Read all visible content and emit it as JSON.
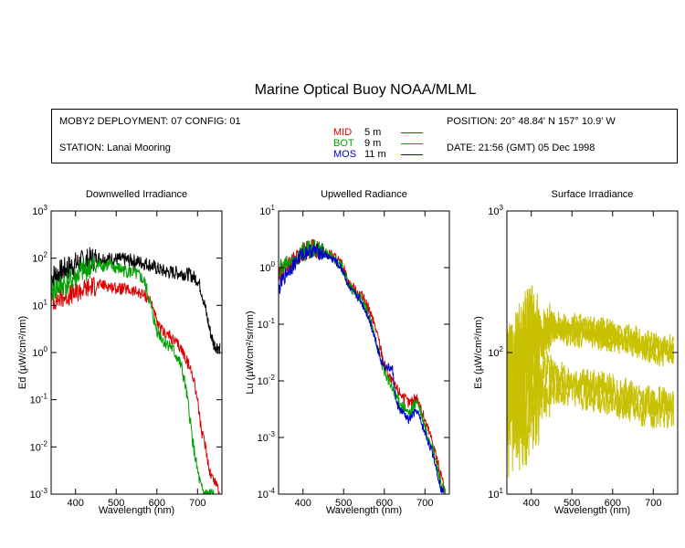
{
  "title": "Marine Optical Buoy NOAA/MLML",
  "info": {
    "deployment": "MOBY2 DEPLOYMENT: 07 CONFIG: 01",
    "station": "STATION: Lanai Mooring",
    "position": "POSITION: 20° 48.84' N   157° 10.9' W",
    "date": "DATE: 21:56 (GMT) 05 Dec 1998"
  },
  "legend": [
    {
      "name": "MID",
      "depth": "5  m",
      "color": "#dd0000"
    },
    {
      "name": "BOT",
      "depth": "9  m",
      "color": "#00a000"
    },
    {
      "name": "MOS",
      "depth": "11  m",
      "color": "#0000cc"
    }
  ],
  "chart_data": [
    {
      "type": "line",
      "title": "Downwelled Irradiance",
      "xlabel": "Wavelength (nm)",
      "ylabel": "Ed  (µW/cm²/nm)",
      "xlim": [
        340,
        760
      ],
      "ylim": [
        0.001,
        1000
      ],
      "yscale": "log",
      "xticks": [
        400,
        500,
        600,
        700
      ],
      "yticks": [
        "10^-3",
        "10^-2",
        "10^-1",
        "10^0",
        "10^1",
        "10^2",
        "10^3"
      ],
      "series": [
        {
          "color": "#000000",
          "noise": 0.3,
          "x": [
            340,
            360,
            380,
            400,
            420,
            440,
            460,
            480,
            500,
            520,
            540,
            560,
            580,
            600,
            620,
            640,
            660,
            680,
            690,
            700,
            710,
            720,
            730,
            740,
            750,
            755
          ],
          "y": [
            40,
            50,
            62,
            75,
            85,
            95,
            100,
            98,
            95,
            93,
            88,
            82,
            75,
            60,
            52,
            50,
            48,
            45,
            40,
            35,
            20,
            8,
            3,
            1.5,
            1.3,
            1.3
          ]
        },
        {
          "color": "#dd0000",
          "noise": 0.25,
          "x": [
            340,
            360,
            380,
            400,
            420,
            440,
            460,
            480,
            500,
            520,
            540,
            560,
            570,
            580,
            590,
            600,
            610,
            620,
            630,
            640,
            650,
            660,
            670,
            680,
            690,
            700,
            710,
            720,
            730,
            740,
            750,
            755
          ],
          "y": [
            12,
            14,
            16,
            18,
            22,
            25,
            27,
            26,
            23,
            22,
            20,
            18,
            16,
            14,
            10,
            4,
            3,
            2.6,
            2.3,
            1.8,
            1.5,
            1.2,
            0.8,
            0.5,
            0.3,
            0.1,
            0.02,
            0.01,
            0.003,
            0.002,
            0.0015,
            0.001
          ]
        },
        {
          "color": "#00a000",
          "noise": 0.3,
          "x": [
            340,
            360,
            380,
            400,
            420,
            440,
            460,
            480,
            500,
            520,
            540,
            560,
            570,
            580,
            590,
            600,
            610,
            620,
            630,
            640,
            650,
            660,
            670,
            680,
            690,
            700,
            710,
            720,
            730,
            740
          ],
          "y": [
            20,
            25,
            30,
            40,
            55,
            65,
            72,
            70,
            62,
            55,
            50,
            40,
            30,
            15,
            6,
            3,
            2.2,
            1.6,
            1.5,
            1.1,
            0.8,
            0.5,
            0.2,
            0.05,
            0.01,
            0.003,
            0.0012,
            0.001,
            0.001,
            0.001
          ]
        }
      ]
    },
    {
      "type": "line",
      "title": "Upwelled Radiance",
      "xlabel": "Wavelength (nm)",
      "ylabel": "Lu  (µW/cm²/sr/nm)",
      "xlim": [
        340,
        760
      ],
      "ylim": [
        0.0001,
        10
      ],
      "yscale": "log",
      "xticks": [
        400,
        500,
        600,
        700
      ],
      "yticks": [
        "10^-4",
        "10^-3",
        "10^-2",
        "10^-1",
        "10^0",
        "10^1"
      ],
      "series": [
        {
          "color": "#dd0000",
          "noise": 0.2,
          "x": [
            340,
            360,
            380,
            400,
            420,
            440,
            460,
            480,
            500,
            510,
            520,
            540,
            560,
            580,
            590,
            600,
            620,
            640,
            660,
            680,
            700,
            720,
            740,
            750
          ],
          "y": [
            0.8,
            1.0,
            1.3,
            1.8,
            2.2,
            2.1,
            1.8,
            1.5,
            1.0,
            0.6,
            0.45,
            0.35,
            0.2,
            0.08,
            0.04,
            0.02,
            0.009,
            0.006,
            0.004,
            0.005,
            0.002,
            0.0008,
            0.0002,
            0.0001
          ]
        },
        {
          "color": "#00a000",
          "noise": 0.2,
          "x": [
            340,
            360,
            380,
            400,
            420,
            440,
            460,
            480,
            500,
            510,
            520,
            540,
            560,
            580,
            590,
            600,
            620,
            640,
            660,
            680,
            700,
            720,
            740,
            750
          ],
          "y": [
            0.9,
            1.1,
            1.4,
            1.9,
            2.1,
            2.0,
            1.7,
            1.4,
            0.9,
            0.55,
            0.4,
            0.3,
            0.15,
            0.05,
            0.025,
            0.015,
            0.007,
            0.004,
            0.0025,
            0.0045,
            0.0015,
            0.0006,
            0.00015,
            0.0001
          ]
        },
        {
          "color": "#0000cc",
          "noise": 0.15,
          "x": [
            340,
            350,
            360,
            380,
            400,
            420,
            440,
            460,
            480,
            500,
            510,
            520,
            540,
            560,
            580,
            590,
            600,
            610,
            620,
            630,
            640,
            650,
            660,
            670,
            680,
            700,
            720,
            740,
            750
          ],
          "y": [
            0.4,
            0.6,
            0.8,
            1.2,
            1.8,
            2.0,
            1.9,
            1.6,
            1.3,
            0.85,
            0.5,
            0.38,
            0.28,
            0.14,
            0.05,
            0.025,
            0.018,
            0.017,
            0.016,
            0.004,
            0.003,
            0.0025,
            0.002,
            0.0025,
            0.003,
            0.0012,
            0.0005,
            0.00012,
            0.0001
          ]
        }
      ]
    },
    {
      "type": "line",
      "title": "Surface Irradiance",
      "xlabel": "Wavelength (nm)",
      "ylabel": "Es  (µW/cm²/nm)",
      "xlim": [
        340,
        760
      ],
      "ylim": [
        10,
        1000
      ],
      "yscale": "log",
      "xticks": [
        400,
        500,
        600,
        700
      ],
      "yticks": [
        "10^1",
        "10^2",
        "10^3"
      ],
      "series": [
        {
          "color": "#c8c000",
          "noise": 0.18,
          "x": [
            340,
            380,
            420,
            450,
            500,
            550,
            600,
            650,
            700,
            750
          ],
          "y": [
            70,
            110,
            140,
            160,
            155,
            150,
            140,
            130,
            115,
            110
          ]
        },
        {
          "color": "#c8c000",
          "noise": 0.18,
          "x": [
            340,
            380,
            420,
            450,
            500,
            550,
            600,
            650,
            700,
            750
          ],
          "y": [
            65,
            100,
            130,
            150,
            145,
            140,
            130,
            122,
            108,
            102
          ]
        },
        {
          "color": "#c8c000",
          "noise": 0.18,
          "x": [
            340,
            380,
            420,
            450,
            500,
            550,
            600,
            650,
            700,
            750
          ],
          "y": [
            60,
            95,
            120,
            140,
            135,
            128,
            122,
            115,
            100,
            95
          ]
        },
        {
          "color": "#c8c000",
          "noise": 0.22,
          "x": [
            340,
            380,
            420,
            450,
            500,
            550,
            600,
            650,
            700,
            750
          ],
          "y": [
            40,
            55,
            62,
            70,
            65,
            60,
            55,
            50,
            45,
            46
          ]
        },
        {
          "color": "#c8c000",
          "noise": 0.22,
          "x": [
            340,
            380,
            420,
            450,
            500,
            550,
            600,
            650,
            700,
            750
          ],
          "y": [
            35,
            45,
            50,
            55,
            52,
            48,
            44,
            40,
            36,
            38
          ]
        }
      ]
    }
  ]
}
